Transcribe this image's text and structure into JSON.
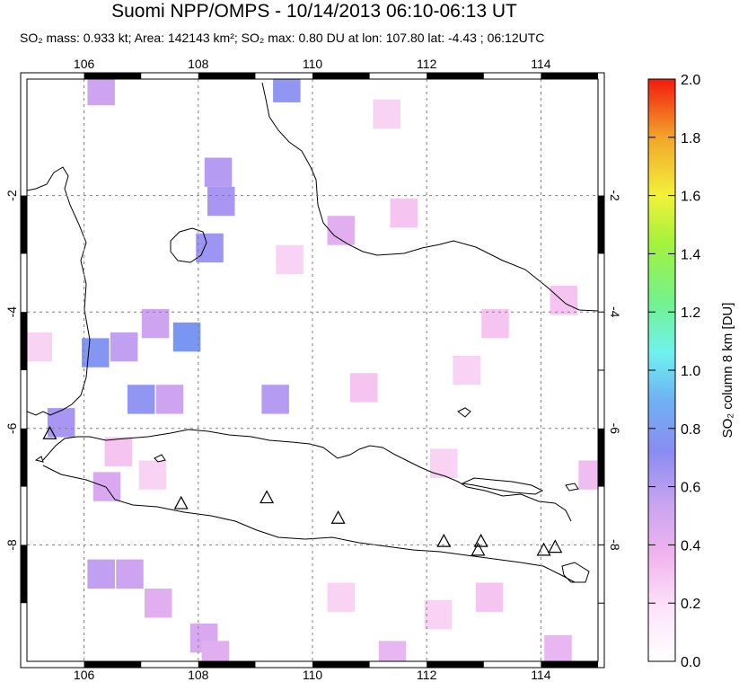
{
  "header": {
    "title": "Suomi NPP/OMPS - 10/14/2013 06:10-06:13 UT",
    "subtitle": "SO₂ mass: 0.933 kt; Area: 142143 km²; SO₂ max: 0.80 DU at lon: 107.80 lat: -4.43 ; 06:12UTC"
  },
  "map": {
    "lon_range": [
      105,
      115
    ],
    "lat_range": [
      -10,
      0
    ],
    "lon_ticks": [
      "106",
      "108",
      "110",
      "112",
      "114"
    ],
    "lat_ticks": [
      "-2",
      "-4",
      "-6",
      "-8"
    ],
    "volcanoes": [
      {
        "lon": 105.4,
        "lat": -6.1
      },
      {
        "lon": 107.7,
        "lat": -7.3
      },
      {
        "lon": 109.2,
        "lat": -7.2
      },
      {
        "lon": 110.45,
        "lat": -7.55
      },
      {
        "lon": 112.3,
        "lat": -7.95
      },
      {
        "lon": 112.95,
        "lat": -7.95
      },
      {
        "lon": 112.9,
        "lat": -8.1
      },
      {
        "lon": 114.05,
        "lat": -8.1
      },
      {
        "lon": 114.25,
        "lat": -8.05
      }
    ],
    "so2_cells": [
      {
        "lon": 106.3,
        "lat": -0.2,
        "v": 0.45
      },
      {
        "lon": 109.55,
        "lat": -0.15,
        "v": 0.7
      },
      {
        "lon": 108.35,
        "lat": -1.6,
        "v": 0.55
      },
      {
        "lon": 108.4,
        "lat": -2.1,
        "v": 0.6
      },
      {
        "lon": 108.2,
        "lat": -2.9,
        "v": 0.65
      },
      {
        "lon": 107.25,
        "lat": -4.2,
        "v": 0.45
      },
      {
        "lon": 107.8,
        "lat": -4.43,
        "v": 0.8
      },
      {
        "lon": 106.2,
        "lat": -4.7,
        "v": 0.75
      },
      {
        "lon": 106.7,
        "lat": -4.6,
        "v": 0.5
      },
      {
        "lon": 107.0,
        "lat": -5.5,
        "v": 0.7
      },
      {
        "lon": 107.5,
        "lat": -5.5,
        "v": 0.45
      },
      {
        "lon": 109.35,
        "lat": -5.5,
        "v": 0.55
      },
      {
        "lon": 105.6,
        "lat": -5.9,
        "v": 0.6
      },
      {
        "lon": 106.4,
        "lat": -7.0,
        "v": 0.4
      },
      {
        "lon": 106.3,
        "lat": -8.5,
        "v": 0.5
      },
      {
        "lon": 106.8,
        "lat": -8.5,
        "v": 0.45
      },
      {
        "lon": 107.3,
        "lat": -9.0,
        "v": 0.35
      },
      {
        "lon": 108.1,
        "lat": -9.6,
        "v": 0.4
      },
      {
        "lon": 108.3,
        "lat": -9.9,
        "v": 0.35
      },
      {
        "lon": 111.4,
        "lat": -9.9,
        "v": 0.3
      },
      {
        "lon": 114.3,
        "lat": -9.8,
        "v": 0.3
      },
      {
        "lon": 109.6,
        "lat": -3.1,
        "v": 0.15
      },
      {
        "lon": 110.5,
        "lat": -2.6,
        "v": 0.35
      },
      {
        "lon": 111.6,
        "lat": -2.3,
        "v": 0.2
      },
      {
        "lon": 111.3,
        "lat": -0.6,
        "v": 0.15
      },
      {
        "lon": 112.7,
        "lat": -5.0,
        "v": 0.15
      },
      {
        "lon": 113.2,
        "lat": -4.2,
        "v": 0.2
      },
      {
        "lon": 114.4,
        "lat": -3.8,
        "v": 0.2
      },
      {
        "lon": 114.9,
        "lat": -6.8,
        "v": 0.25
      },
      {
        "lon": 112.3,
        "lat": -6.6,
        "v": 0.15
      },
      {
        "lon": 110.9,
        "lat": -5.3,
        "v": 0.2
      },
      {
        "lon": 105.2,
        "lat": -4.6,
        "v": 0.15
      },
      {
        "lon": 106.6,
        "lat": -6.4,
        "v": 0.2
      },
      {
        "lon": 107.2,
        "lat": -6.8,
        "v": 0.15
      },
      {
        "lon": 110.5,
        "lat": -8.9,
        "v": 0.15
      },
      {
        "lon": 113.1,
        "lat": -8.9,
        "v": 0.2
      },
      {
        "lon": 112.2,
        "lat": -9.2,
        "v": 0.15
      }
    ]
  },
  "colorbar": {
    "label": "SO₂ column 8 km [DU]",
    "range": [
      0,
      2
    ],
    "ticks": [
      "0.0",
      "0.2",
      "0.4",
      "0.6",
      "0.8",
      "1.0",
      "1.2",
      "1.4",
      "1.6",
      "1.8",
      "2.0"
    ],
    "colors": [
      "#ffffff",
      "#f7c2f2",
      "#c9a4f0",
      "#8a8cf2",
      "#6fc6f3",
      "#6ff2ef",
      "#74f28a",
      "#a4f23c",
      "#f2f23a",
      "#f2b12a",
      "#f24a1a",
      "#f21a0c"
    ]
  }
}
